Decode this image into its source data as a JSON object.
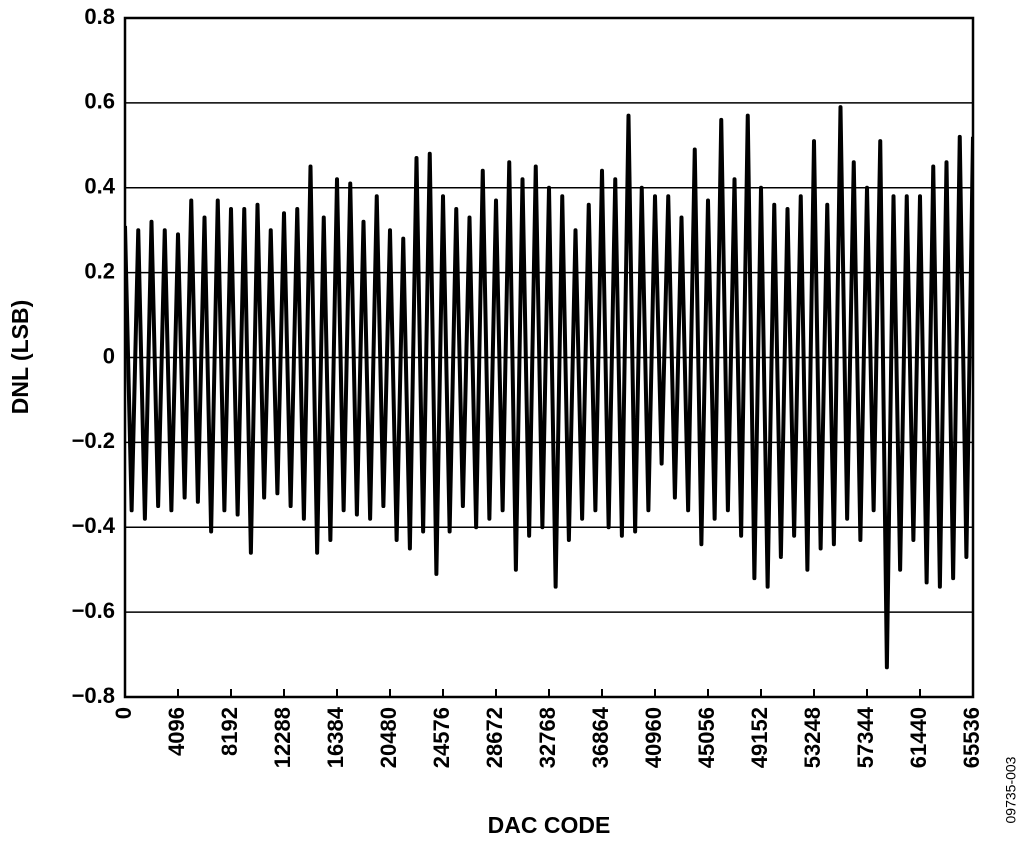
{
  "chart_data": {
    "type": "line",
    "x_label": "DAC CODE",
    "y_label": "DNL (LSB)",
    "note": "09735-003",
    "x": [
      0,
      512,
      1024,
      1536,
      2048,
      2560,
      3072,
      3584,
      4096,
      4608,
      5120,
      5632,
      6144,
      6656,
      7168,
      7680,
      8192,
      8704,
      9216,
      9728,
      10240,
      10752,
      11264,
      11776,
      12288,
      12800,
      13312,
      13824,
      14336,
      14848,
      15360,
      15872,
      16384,
      16896,
      17408,
      17920,
      18432,
      18944,
      19456,
      19968,
      20480,
      20992,
      21504,
      22016,
      22528,
      23040,
      23552,
      24064,
      24576,
      25088,
      25600,
      26112,
      26624,
      27136,
      27648,
      28160,
      28672,
      29184,
      29696,
      30208,
      30720,
      31232,
      31744,
      32256,
      32768,
      33280,
      33792,
      34304,
      34816,
      35328,
      35840,
      36352,
      36864,
      37376,
      37888,
      38400,
      38912,
      39424,
      39936,
      40448,
      40960,
      41472,
      41984,
      42496,
      43008,
      43520,
      44032,
      44544,
      45056,
      45568,
      46080,
      46592,
      47104,
      47616,
      48128,
      48640,
      49152,
      49664,
      50176,
      50688,
      51200,
      51712,
      52224,
      52736,
      53248,
      53760,
      54272,
      54784,
      55296,
      55808,
      56320,
      56832,
      57344,
      57856,
      58368,
      58880,
      59392,
      59904,
      60416,
      60928,
      61440,
      61952,
      62464,
      62976,
      63488,
      64000,
      64512,
      65024,
      65536
    ],
    "values": [
      0.31,
      -0.36,
      0.3,
      -0.38,
      0.32,
      -0.35,
      0.3,
      -0.36,
      0.29,
      -0.33,
      0.37,
      -0.34,
      0.33,
      -0.41,
      0.37,
      -0.36,
      0.35,
      -0.37,
      0.35,
      -0.46,
      0.36,
      -0.33,
      0.3,
      -0.32,
      0.34,
      -0.35,
      0.35,
      -0.38,
      0.45,
      -0.46,
      0.33,
      -0.43,
      0.42,
      -0.36,
      0.41,
      -0.37,
      0.32,
      -0.38,
      0.38,
      -0.35,
      0.3,
      -0.43,
      0.28,
      -0.45,
      0.47,
      -0.41,
      0.48,
      -0.51,
      0.38,
      -0.41,
      0.35,
      -0.35,
      0.33,
      -0.4,
      0.44,
      -0.38,
      0.37,
      -0.36,
      0.46,
      -0.5,
      0.42,
      -0.42,
      0.45,
      -0.4,
      0.4,
      -0.54,
      0.38,
      -0.43,
      0.3,
      -0.38,
      0.36,
      -0.36,
      0.44,
      -0.4,
      0.42,
      -0.42,
      0.57,
      -0.41,
      0.4,
      -0.36,
      0.38,
      -0.25,
      0.38,
      -0.33,
      0.33,
      -0.36,
      0.49,
      -0.44,
      0.37,
      -0.38,
      0.56,
      -0.36,
      0.42,
      -0.42,
      0.57,
      -0.52,
      0.4,
      -0.54,
      0.36,
      -0.47,
      0.35,
      -0.42,
      0.38,
      -0.5,
      0.51,
      -0.45,
      0.36,
      -0.44,
      0.59,
      -0.38,
      0.46,
      -0.43,
      0.4,
      -0.36,
      0.51,
      -0.73,
      0.38,
      -0.5,
      0.38,
      -0.43,
      0.38,
      -0.53,
      0.45,
      -0.54,
      0.46,
      -0.52,
      0.52,
      -0.47,
      0.52
    ],
    "color": "#000000",
    "xlim": [
      0,
      65536
    ],
    "xticks": [
      0,
      4096,
      8192,
      12288,
      16384,
      20480,
      24576,
      28672,
      32768,
      36864,
      40960,
      45056,
      49152,
      53248,
      57344,
      61440,
      65536
    ],
    "ylim": [
      -0.8,
      0.8
    ],
    "yticks": [
      {
        "value": -0.8,
        "label": "−0.8"
      },
      {
        "value": -0.6,
        "label": "−0.6"
      },
      {
        "value": -0.4,
        "label": "−0.4"
      },
      {
        "value": -0.2,
        "label": "−0.2"
      },
      0,
      0.2,
      0.4,
      0.6,
      0.8
    ],
    "grid": true
  }
}
